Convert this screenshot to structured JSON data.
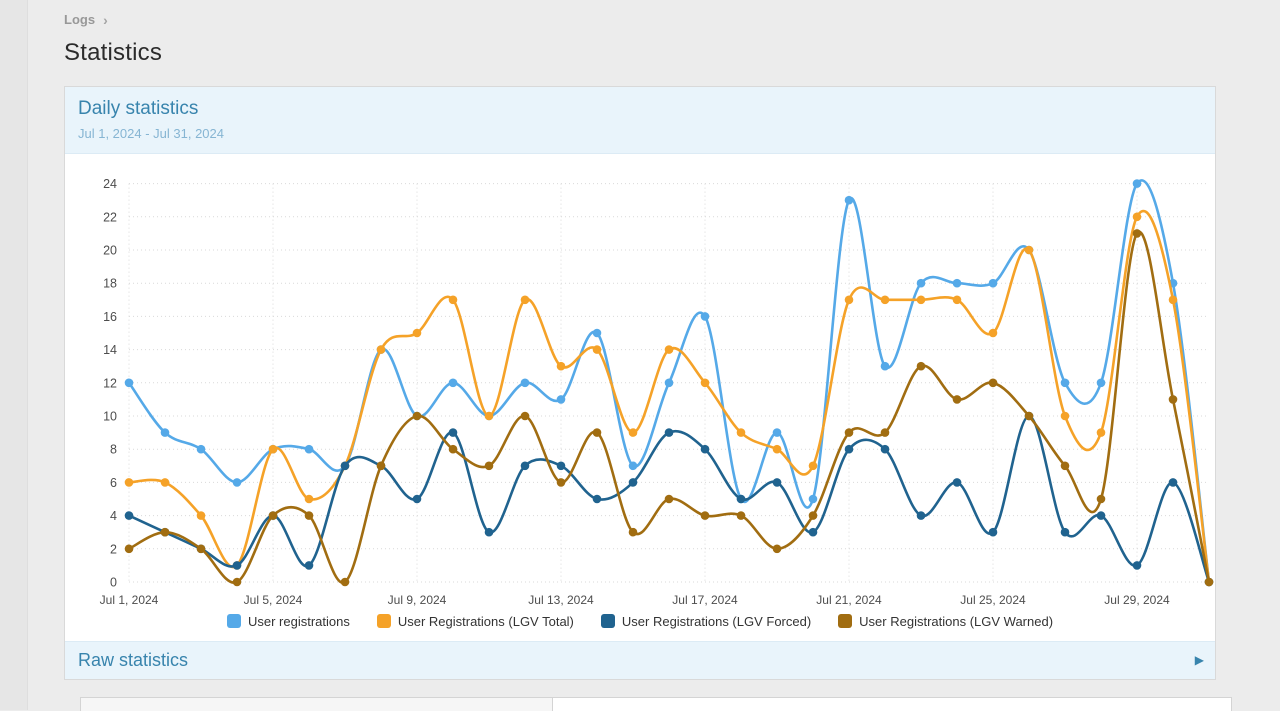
{
  "breadcrumb": {
    "label": "Logs",
    "separator": "›"
  },
  "page_title": "Statistics",
  "card": {
    "title": "Daily statistics",
    "date_range": "Jul 1, 2024 - Jul 31, 2024",
    "footer_label": "Raw statistics",
    "footer_arrow": "▶"
  },
  "colors": {
    "header_bg": "#e9f4fb",
    "header_text": "#3884ad",
    "subtitle_text": "#86b5d3",
    "page_bg": "#ececec",
    "gridline": "#d9d9d9"
  },
  "chart_data": {
    "type": "line",
    "title": "Daily statistics",
    "subtitle": "Jul 1, 2024 - Jul 31, 2024",
    "x_unit": "day of July 2024",
    "x": [
      1,
      2,
      3,
      4,
      5,
      6,
      7,
      8,
      9,
      10,
      11,
      12,
      13,
      14,
      15,
      16,
      17,
      18,
      19,
      20,
      21,
      22,
      23,
      24,
      25,
      26,
      27,
      28,
      29,
      30,
      31
    ],
    "x_tick_days": [
      1,
      5,
      9,
      13,
      17,
      21,
      25,
      29
    ],
    "x_tick_labels": [
      "Jul 1, 2024",
      "Jul 5, 2024",
      "Jul 9, 2024",
      "Jul 13, 2024",
      "Jul 17, 2024",
      "Jul 21, 2024",
      "Jul 25, 2024",
      "Jul 29, 2024"
    ],
    "ylim": [
      0,
      24
    ],
    "y_tick_step": 2,
    "grid": "dotted",
    "legend_position": "bottom",
    "point_markers": true,
    "smooth_lines": true,
    "series": [
      {
        "name": "User registrations",
        "color": "#55A9E8",
        "values": [
          12,
          9,
          8,
          6,
          8,
          8,
          7,
          14,
          10,
          12,
          10,
          12,
          11,
          15,
          7,
          12,
          16,
          5,
          9,
          5,
          23,
          13,
          18,
          18,
          18,
          20,
          12,
          12,
          24,
          18,
          0
        ]
      },
      {
        "name": "User Registrations (LGV Total)",
        "color": "#F5A228",
        "values": [
          6,
          6,
          4,
          1,
          8,
          5,
          7,
          14,
          15,
          17,
          10,
          17,
          13,
          14,
          9,
          14,
          12,
          9,
          8,
          7,
          17,
          17,
          17,
          17,
          15,
          20,
          10,
          9,
          22,
          17,
          0
        ]
      },
      {
        "name": "User Registrations (LGV Forced)",
        "color": "#20638F",
        "values": [
          4,
          3,
          2,
          1,
          4,
          1,
          7,
          7,
          5,
          9,
          3,
          7,
          7,
          5,
          6,
          9,
          8,
          5,
          6,
          3,
          8,
          8,
          4,
          6,
          3,
          10,
          3,
          4,
          1,
          6,
          0
        ]
      },
      {
        "name": "User Registrations (LGV Warned)",
        "color": "#A16D11",
        "values": [
          2,
          3,
          2,
          0,
          4,
          4,
          0,
          7,
          10,
          8,
          7,
          10,
          6,
          9,
          3,
          5,
          4,
          4,
          2,
          4,
          9,
          9,
          13,
          11,
          12,
          10,
          7,
          5,
          21,
          11,
          0
        ]
      }
    ]
  }
}
